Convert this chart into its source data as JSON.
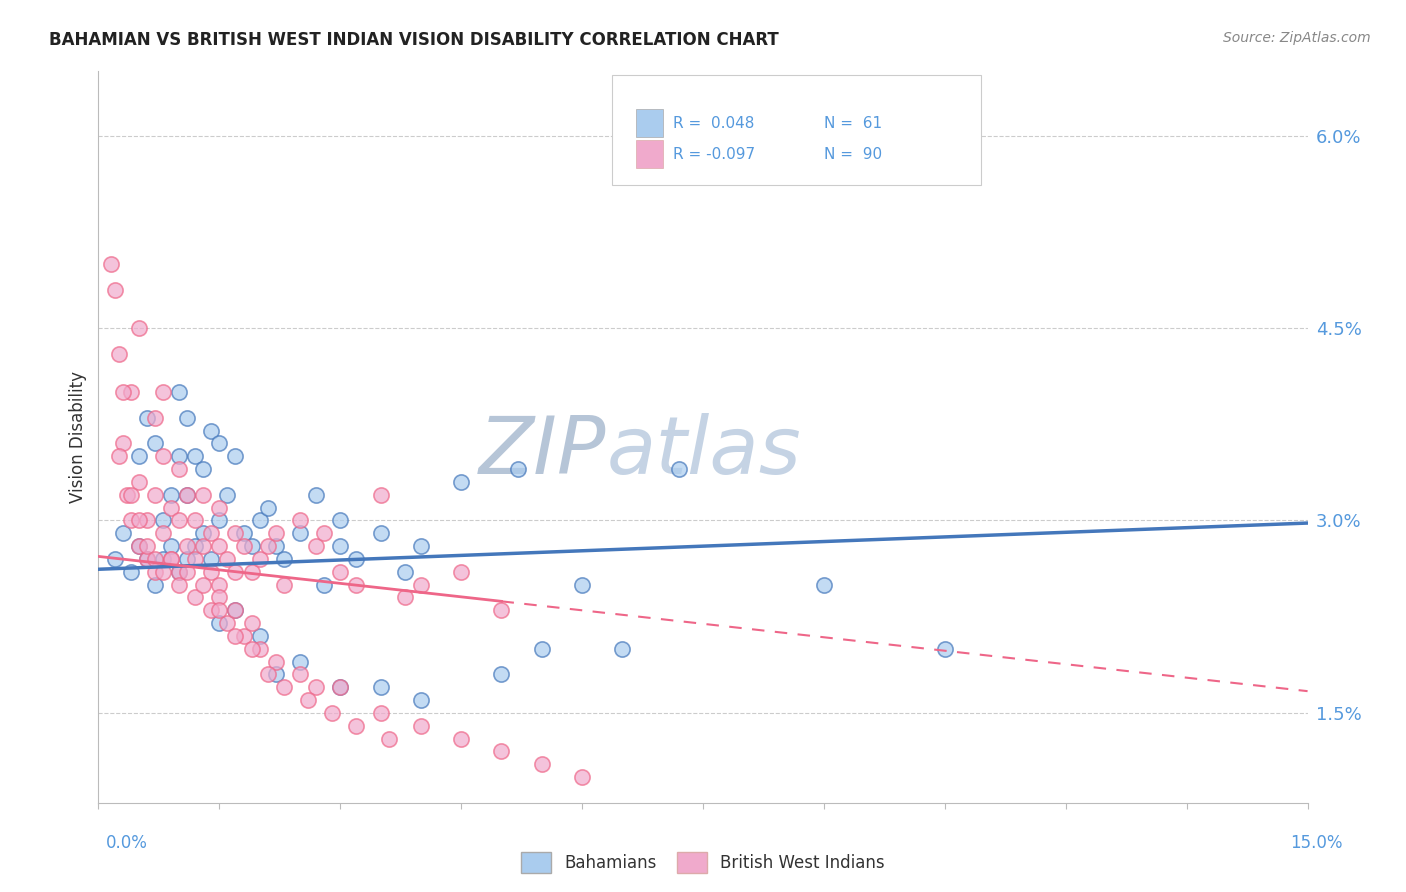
{
  "title": "BAHAMIAN VS BRITISH WEST INDIAN VISION DISABILITY CORRELATION CHART",
  "source": "Source: ZipAtlas.com",
  "ylabel": "Vision Disability",
  "ytick_labels": [
    "1.5%",
    "3.0%",
    "4.5%",
    "6.0%"
  ],
  "ytick_vals": [
    1.5,
    3.0,
    4.5,
    6.0
  ],
  "xmin": 0.0,
  "xmax": 15.0,
  "ymin": 0.8,
  "ymax": 6.5,
  "color_blue": "#aaccee",
  "color_pink": "#f0aacc",
  "color_line_blue": "#4477bb",
  "color_line_pink": "#ee6688",
  "color_ytick": "#5599dd",
  "watermark_color": "#ccddf0",
  "blue_scatter_x": [
    0.2,
    0.3,
    0.4,
    0.5,
    0.5,
    0.6,
    0.6,
    0.7,
    0.7,
    0.8,
    0.8,
    0.9,
    0.9,
    1.0,
    1.0,
    1.0,
    1.1,
    1.1,
    1.1,
    1.2,
    1.2,
    1.3,
    1.3,
    1.4,
    1.4,
    1.5,
    1.5,
    1.6,
    1.7,
    1.8,
    1.9,
    2.0,
    2.1,
    2.2,
    2.3,
    2.5,
    2.7,
    2.8,
    3.0,
    3.0,
    3.2,
    3.5,
    3.8,
    4.0,
    4.5,
    5.2,
    5.5,
    6.0,
    6.5,
    7.2,
    9.0,
    10.5,
    1.5,
    1.7,
    2.0,
    2.2,
    2.5,
    3.0,
    3.5,
    4.0,
    5.0
  ],
  "blue_scatter_y": [
    2.7,
    2.9,
    2.6,
    3.5,
    2.8,
    3.8,
    2.7,
    3.6,
    2.5,
    3.0,
    2.7,
    3.2,
    2.8,
    4.0,
    3.5,
    2.6,
    3.8,
    3.2,
    2.7,
    3.5,
    2.8,
    3.4,
    2.9,
    3.7,
    2.7,
    3.6,
    3.0,
    3.2,
    3.5,
    2.9,
    2.8,
    3.0,
    3.1,
    2.8,
    2.7,
    2.9,
    3.2,
    2.5,
    2.8,
    3.0,
    2.7,
    2.9,
    2.6,
    2.8,
    3.3,
    3.4,
    2.0,
    2.5,
    2.0,
    3.4,
    2.5,
    2.0,
    2.2,
    2.3,
    2.1,
    1.8,
    1.9,
    1.7,
    1.7,
    1.6,
    1.8
  ],
  "pink_scatter_x": [
    0.15,
    0.2,
    0.25,
    0.3,
    0.35,
    0.4,
    0.4,
    0.5,
    0.5,
    0.5,
    0.6,
    0.6,
    0.7,
    0.7,
    0.7,
    0.8,
    0.8,
    0.8,
    0.9,
    0.9,
    1.0,
    1.0,
    1.0,
    1.1,
    1.1,
    1.2,
    1.2,
    1.3,
    1.3,
    1.4,
    1.4,
    1.5,
    1.5,
    1.5,
    1.6,
    1.7,
    1.7,
    1.8,
    1.9,
    2.0,
    2.1,
    2.2,
    2.3,
    2.5,
    2.7,
    2.8,
    3.0,
    3.2,
    3.5,
    3.8,
    4.0,
    4.5,
    5.0,
    0.25,
    0.3,
    0.4,
    0.5,
    0.6,
    0.7,
    0.8,
    0.9,
    1.0,
    1.1,
    1.2,
    1.3,
    1.4,
    1.5,
    1.6,
    1.7,
    1.8,
    1.9,
    2.0,
    2.2,
    2.5,
    2.7,
    3.0,
    3.5,
    4.0,
    4.5,
    5.0,
    5.5,
    6.0,
    1.5,
    1.7,
    1.9,
    2.1,
    2.3,
    2.6,
    2.9,
    3.2,
    3.6
  ],
  "pink_scatter_y": [
    5.0,
    4.8,
    4.3,
    3.6,
    3.2,
    3.0,
    4.0,
    2.8,
    3.3,
    4.5,
    2.7,
    3.0,
    2.6,
    3.2,
    3.8,
    2.9,
    3.5,
    4.0,
    2.7,
    3.1,
    2.6,
    3.0,
    3.4,
    2.8,
    3.2,
    2.7,
    3.0,
    2.8,
    3.2,
    2.6,
    2.9,
    2.5,
    2.8,
    3.1,
    2.7,
    2.6,
    2.9,
    2.8,
    2.6,
    2.7,
    2.8,
    2.9,
    2.5,
    3.0,
    2.8,
    2.9,
    2.6,
    2.5,
    3.2,
    2.4,
    2.5,
    2.6,
    2.3,
    3.5,
    4.0,
    3.2,
    3.0,
    2.8,
    2.7,
    2.6,
    2.7,
    2.5,
    2.6,
    2.4,
    2.5,
    2.3,
    2.4,
    2.2,
    2.3,
    2.1,
    2.2,
    2.0,
    1.9,
    1.8,
    1.7,
    1.7,
    1.5,
    1.4,
    1.3,
    1.2,
    1.1,
    1.0,
    2.3,
    2.1,
    2.0,
    1.8,
    1.7,
    1.6,
    1.5,
    1.4,
    1.3
  ],
  "blue_line_x0": 0.0,
  "blue_line_x1": 15.0,
  "blue_line_y0": 2.62,
  "blue_line_y1": 2.98,
  "pink_solid_x0": 0.0,
  "pink_solid_x1": 5.0,
  "pink_solid_y0": 2.72,
  "pink_solid_y1": 2.37,
  "pink_dash_x0": 5.0,
  "pink_dash_x1": 15.0,
  "pink_dash_y0": 2.37,
  "pink_dash_y1": 1.67
}
